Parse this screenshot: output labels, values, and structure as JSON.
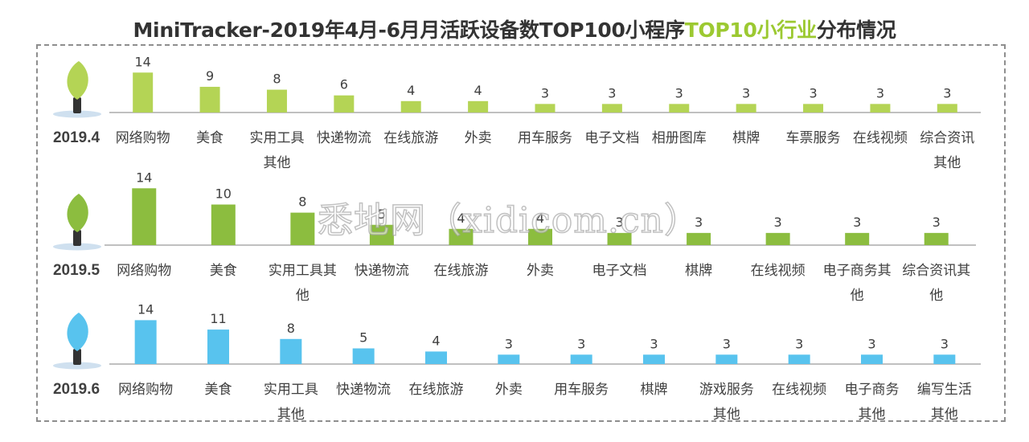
{
  "title": {
    "prefix": "MiniTracker-2019年4月-6月月活跃设备数TOP100小程序",
    "highlight": "TOP10小行业",
    "suffix": "分布情况"
  },
  "watermark": "悉地网（xidicom.cn）",
  "colors": {
    "green": "#a9ce4d",
    "green_dark": "#8cbd3f",
    "blue": "#58c3ee",
    "axis": "#9a9a9a",
    "text": "#404040"
  },
  "chart_data": [
    {
      "type": "bar",
      "period": "2019.4",
      "color": "#b4d455",
      "categories": [
        "网络购物",
        "美食",
        "实用工具\n其他",
        "快递物流",
        "在线旅游",
        "外卖",
        "用车服务",
        "电子文档",
        "相册图库",
        "棋牌",
        "车票服务",
        "在线视频",
        "综合资讯\n其他"
      ],
      "values": [
        14,
        9,
        8,
        6,
        4,
        4,
        3,
        3,
        3,
        3,
        3,
        3,
        3
      ]
    },
    {
      "type": "bar",
      "period": "2019.5",
      "color": "#8cbd3f",
      "categories": [
        "网络购物",
        "美食",
        "实用工具其\n他",
        "快递物流",
        "在线旅游",
        "外卖",
        "电子文档",
        "棋牌",
        "在线视频",
        "电子商务其\n他",
        "综合资讯其\n他"
      ],
      "values": [
        14,
        10,
        8,
        5,
        4,
        4,
        3,
        3,
        3,
        3,
        3
      ]
    },
    {
      "type": "bar",
      "period": "2019.6",
      "color": "#58c3ee",
      "categories": [
        "网络购物",
        "美食",
        "实用工具\n其他",
        "快递物流",
        "在线旅游",
        "外卖",
        "用车服务",
        "棋牌",
        "游戏服务\n其他",
        "在线视频",
        "电子商务\n其他",
        "编写生活\n其他"
      ],
      "values": [
        14,
        11,
        8,
        5,
        4,
        3,
        3,
        3,
        3,
        3,
        3,
        3
      ]
    }
  ]
}
